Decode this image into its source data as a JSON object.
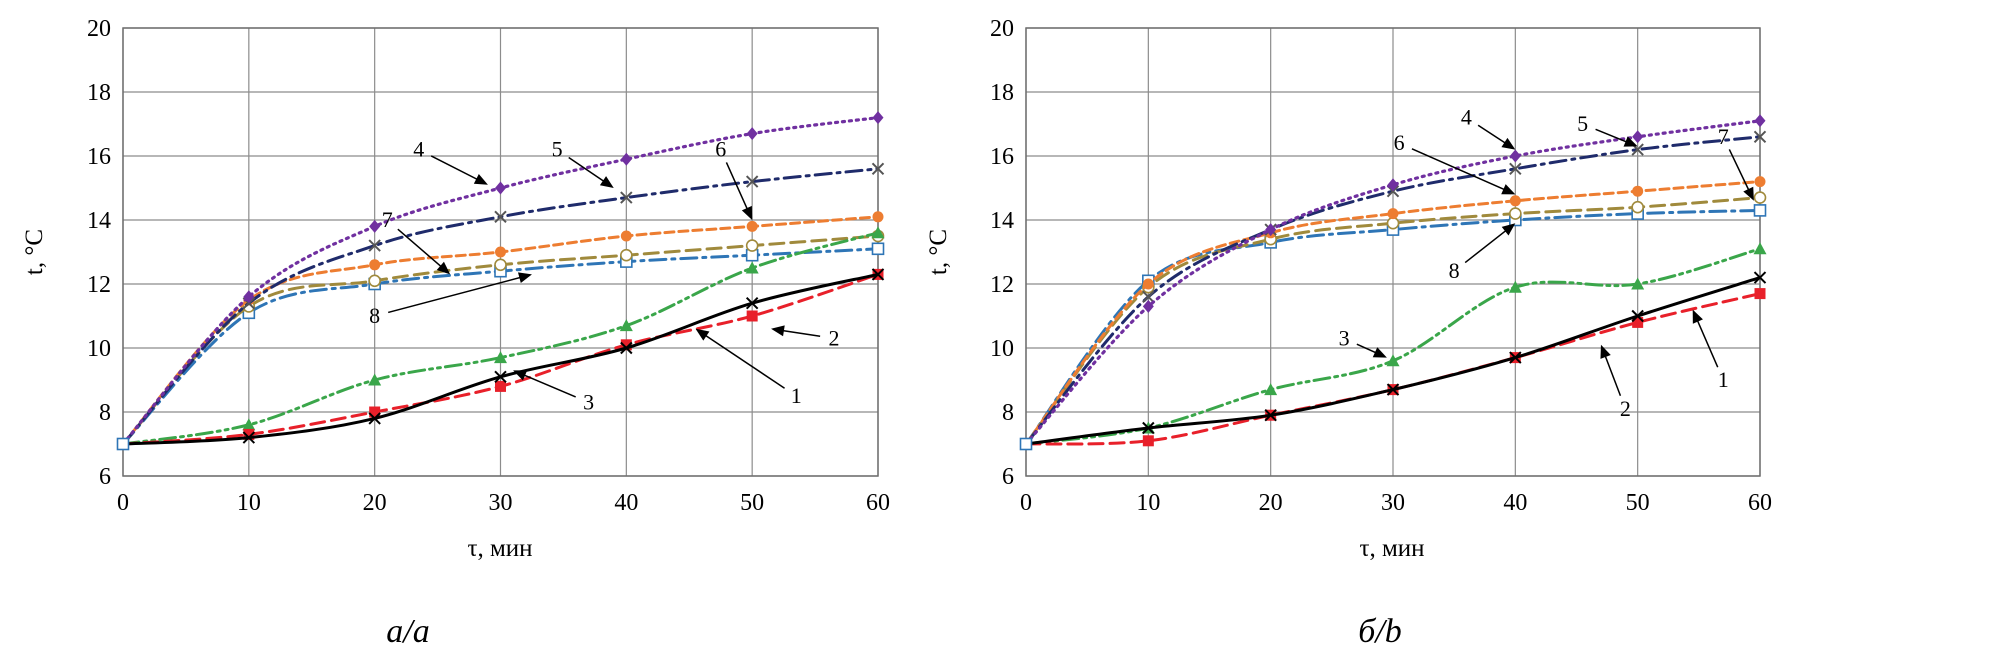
{
  "chart_data": [
    {
      "type": "line",
      "caption": "а/a",
      "xlabel": "τ, мин",
      "ylabel": "t, °C",
      "xlim": [
        0,
        60
      ],
      "ylim": [
        6,
        20
      ],
      "x_ticks": [
        "0",
        "10",
        "20",
        "30",
        "40",
        "50",
        "60"
      ],
      "y_ticks": [
        "6",
        "8",
        "10",
        "12",
        "14",
        "16",
        "18",
        "20"
      ],
      "grid": true,
      "x": [
        0,
        10,
        20,
        30,
        40,
        50,
        60
      ],
      "series": [
        {
          "label": "1",
          "color": "#000000",
          "dash": "solid",
          "marker": "x",
          "values": [
            7.0,
            7.2,
            7.8,
            9.1,
            10.0,
            11.4,
            12.3
          ]
        },
        {
          "label": "2",
          "color": "#e8202a",
          "dash": "dashed",
          "marker": "square",
          "values": [
            7.0,
            7.3,
            8.0,
            8.8,
            10.1,
            11.0,
            12.3
          ]
        },
        {
          "label": "3",
          "color": "#3aa64a",
          "dash": "dashdotdot",
          "marker": "triangle",
          "values": [
            7.0,
            7.6,
            9.0,
            9.7,
            10.7,
            12.5,
            13.6
          ]
        },
        {
          "label": "4",
          "color": "#7030a0",
          "dash": "dotted",
          "marker": "diamond",
          "values": [
            7.0,
            11.6,
            13.8,
            15.0,
            15.9,
            16.7,
            17.2
          ]
        },
        {
          "label": "5",
          "color": "#1f2b6b",
          "dash": "dashdot",
          "marker": "x",
          "values": [
            7.0,
            11.4,
            13.2,
            14.1,
            14.7,
            15.2,
            15.6
          ]
        },
        {
          "label": "6",
          "color": "#ed7d31",
          "dash": "shortdash",
          "marker": "circle",
          "values": [
            7.0,
            11.5,
            12.6,
            13.0,
            13.5,
            13.8,
            14.1
          ]
        },
        {
          "label": "7",
          "color": "#a08a3c",
          "dash": "dashed",
          "marker": "opencircle",
          "values": [
            7.0,
            11.3,
            12.1,
            12.6,
            12.9,
            13.2,
            13.5
          ]
        },
        {
          "label": "8",
          "color": "#2e75b6",
          "dash": "dashdot",
          "marker": "opensquare",
          "values": [
            7.0,
            11.1,
            12.0,
            12.4,
            12.7,
            12.9,
            13.1
          ]
        }
      ],
      "annotations": [
        {
          "text": "4",
          "x": 23.5,
          "y": 16.2,
          "tx": 29,
          "ty": 15.1
        },
        {
          "text": "5",
          "x": 34.5,
          "y": 16.2,
          "tx": 39,
          "ty": 15.0
        },
        {
          "text": "6",
          "x": 47.5,
          "y": 16.2,
          "tx": 50,
          "ty": 14.0
        },
        {
          "text": "7",
          "x": 21,
          "y": 14.0,
          "tx": 26,
          "ty": 12.3
        },
        {
          "text": "8",
          "x": 20,
          "y": 11.0,
          "tx": 32.5,
          "ty": 12.3
        },
        {
          "text": "3",
          "x": 37,
          "y": 8.3,
          "tx": 31,
          "ty": 9.3
        },
        {
          "text": "2",
          "x": 56.5,
          "y": 10.3,
          "tx": 51.5,
          "ty": 10.6
        },
        {
          "text": "1",
          "x": 53.5,
          "y": 8.5,
          "tx": 45.5,
          "ty": 10.6
        }
      ]
    },
    {
      "type": "line",
      "caption": "б/b",
      "xlabel": "τ, мин",
      "ylabel": "t, °C",
      "xlim": [
        0,
        60
      ],
      "ylim": [
        6,
        20
      ],
      "x_ticks": [
        "0",
        "10",
        "20",
        "30",
        "40",
        "50",
        "60"
      ],
      "y_ticks": [
        "6",
        "8",
        "10",
        "12",
        "14",
        "16",
        "18",
        "20"
      ],
      "grid": true,
      "x": [
        0,
        10,
        20,
        30,
        40,
        50,
        60
      ],
      "series": [
        {
          "label": "1",
          "color": "#000000",
          "dash": "solid",
          "marker": "x",
          "values": [
            7.0,
            7.5,
            7.9,
            8.7,
            9.7,
            11.0,
            12.2
          ]
        },
        {
          "label": "2",
          "color": "#e8202a",
          "dash": "dashed",
          "marker": "square",
          "values": [
            7.0,
            7.1,
            7.9,
            8.7,
            9.7,
            10.8,
            11.7
          ]
        },
        {
          "label": "3",
          "color": "#3aa64a",
          "dash": "dashdotdot",
          "marker": "triangle",
          "values": [
            7.0,
            7.5,
            8.7,
            9.6,
            11.9,
            12.0,
            13.1
          ]
        },
        {
          "label": "4",
          "color": "#7030a0",
          "dash": "dotted",
          "marker": "diamond",
          "values": [
            7.0,
            11.3,
            13.7,
            15.1,
            16.0,
            16.6,
            17.1
          ]
        },
        {
          "label": "5",
          "color": "#1f2b6b",
          "dash": "dashdot",
          "marker": "x",
          "values": [
            7.0,
            11.6,
            13.7,
            14.9,
            15.6,
            16.2,
            16.6
          ]
        },
        {
          "label": "6",
          "color": "#ed7d31",
          "dash": "shortdash",
          "marker": "circle",
          "values": [
            7.0,
            12.0,
            13.6,
            14.2,
            14.6,
            14.9,
            15.2
          ]
        },
        {
          "label": "7",
          "color": "#a08a3c",
          "dash": "dashed",
          "marker": "opencircle",
          "values": [
            7.0,
            11.9,
            13.4,
            13.9,
            14.2,
            14.4,
            14.7
          ]
        },
        {
          "label": "8",
          "color": "#2e75b6",
          "dash": "dashdot",
          "marker": "opensquare",
          "values": [
            7.0,
            12.1,
            13.3,
            13.7,
            14.0,
            14.2,
            14.3
          ]
        }
      ],
      "annotations": [
        {
          "text": "4",
          "x": 36,
          "y": 17.2,
          "tx": 40,
          "ty": 16.2
        },
        {
          "text": "5",
          "x": 45.5,
          "y": 17.0,
          "tx": 50,
          "ty": 16.3
        },
        {
          "text": "6",
          "x": 30.5,
          "y": 16.4,
          "tx": 40,
          "ty": 14.8
        },
        {
          "text": "7",
          "x": 57,
          "y": 16.6,
          "tx": 59.5,
          "ty": 14.6
        },
        {
          "text": "8",
          "x": 35,
          "y": 12.4,
          "tx": 40,
          "ty": 13.9
        },
        {
          "text": "3",
          "x": 26,
          "y": 10.3,
          "tx": 29.5,
          "ty": 9.7
        },
        {
          "text": "2",
          "x": 49,
          "y": 8.1,
          "tx": 47,
          "ty": 10.1
        },
        {
          "text": "1",
          "x": 57,
          "y": 9.0,
          "tx": 54.5,
          "ty": 11.2
        }
      ]
    }
  ]
}
